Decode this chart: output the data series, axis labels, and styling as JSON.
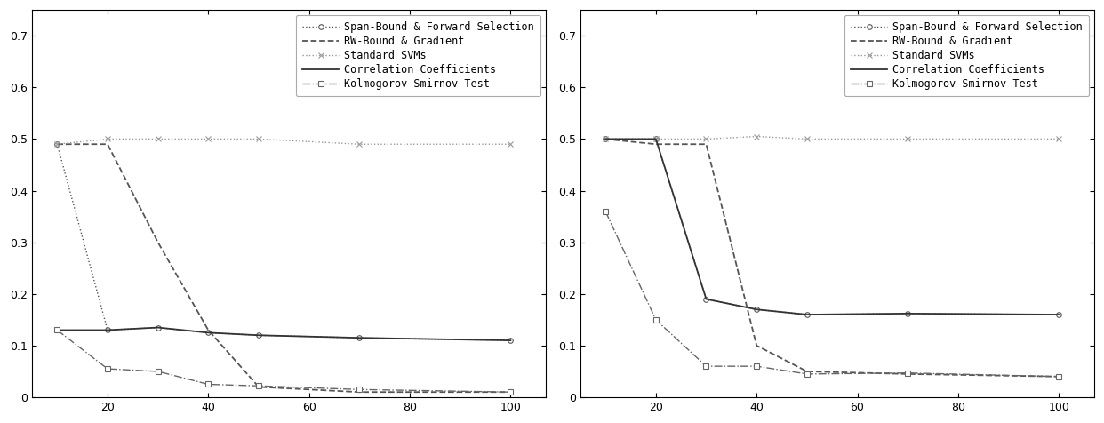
{
  "x": [
    10,
    20,
    30,
    40,
    50,
    70,
    100
  ],
  "left": {
    "span_bound": [
      0.49,
      0.13,
      0.135,
      0.125,
      0.12,
      0.115,
      0.11
    ],
    "rw_bound": [
      0.49,
      0.49,
      0.3,
      0.13,
      0.02,
      0.01,
      0.01
    ],
    "std_svms": [
      0.49,
      0.5,
      0.5,
      0.5,
      0.5,
      0.49,
      0.49
    ],
    "corr_coef": [
      0.13,
      0.13,
      0.135,
      0.125,
      0.12,
      0.115,
      0.11
    ],
    "kolm_smir": [
      0.13,
      0.055,
      0.05,
      0.025,
      0.022,
      0.015,
      0.01
    ]
  },
  "right": {
    "span_bound": [
      0.5,
      0.5,
      0.19,
      0.17,
      0.16,
      0.162,
      0.16
    ],
    "rw_bound": [
      0.5,
      0.49,
      0.49,
      0.1,
      0.05,
      0.045,
      0.04
    ],
    "std_svms": [
      0.5,
      0.5,
      0.5,
      0.505,
      0.5,
      0.5,
      0.5
    ],
    "corr_coef": [
      0.5,
      0.5,
      0.19,
      0.17,
      0.16,
      0.162,
      0.16
    ],
    "kolm_smir": [
      0.36,
      0.15,
      0.06,
      0.06,
      0.045,
      0.047,
      0.04
    ]
  },
  "ylim": [
    0,
    0.75
  ],
  "yticks": [
    0,
    0.1,
    0.2,
    0.3,
    0.4,
    0.5,
    0.6,
    0.7
  ],
  "xlim": [
    5,
    107
  ],
  "xticks": [
    20,
    40,
    60,
    80,
    100
  ],
  "legend_labels": [
    "Span-Bound & Forward Selection",
    "RW-Bound & Gradient",
    "Standard SVMs",
    "Correlation Coefficients",
    "Kolmogorov-Smirnov Test"
  ],
  "line_styles": [
    {
      "ls": ":",
      "marker": "o",
      "color": "#555555",
      "lw": 1.0,
      "ms": 4,
      "mfc": "white"
    },
    {
      "ls": "--",
      "marker": "none",
      "color": "#555555",
      "lw": 1.3,
      "ms": 4,
      "mfc": "white"
    },
    {
      "ls": ":",
      "marker": "x",
      "color": "#999999",
      "lw": 1.0,
      "ms": 5,
      "mfc": "none"
    },
    {
      "ls": "-",
      "marker": "none",
      "color": "#333333",
      "lw": 1.3,
      "ms": 4,
      "mfc": "white"
    },
    {
      "ls": "-.",
      "marker": "s",
      "color": "#666666",
      "lw": 1.0,
      "ms": 4,
      "mfc": "white"
    }
  ],
  "bg_color": "#ffffff",
  "figsize": [
    12.42,
    4.76
  ],
  "dpi": 100
}
